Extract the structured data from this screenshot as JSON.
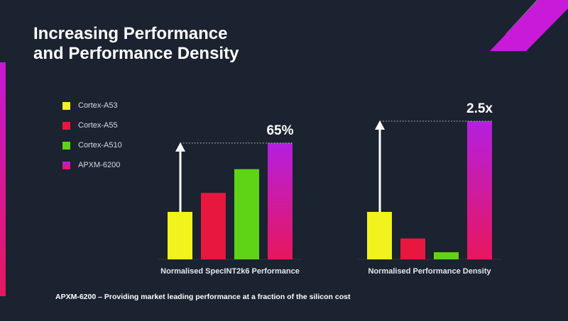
{
  "slide": {
    "title_line1": "Increasing Performance",
    "title_line2": "and Performance Density",
    "footer": "APXM-6200 – Providing market leading performance at a fraction of the silicon cost"
  },
  "colors": {
    "background": "#1b2230",
    "cortex_a53": "#f2f21c",
    "cortex_a55": "#e8173f",
    "cortex_a510": "#5fd416",
    "apxm_6200_top": "#b41fe0",
    "apxm_6200_bottom": "#e8175d",
    "arrow": "#ffffff"
  },
  "chart_data": {
    "type": "bar",
    "legend": [
      "Cortex-A53",
      "Cortex-A55",
      "Cortex-A510",
      "APXM-6200"
    ],
    "legend_placement": "left",
    "grid": false,
    "groups": [
      {
        "xlabel": "Normalised SpecINT2k6 Performance",
        "values": [
          1.0,
          1.4,
          1.9,
          2.45
        ],
        "annotation": "65%"
      },
      {
        "xlabel": "Normalised Performance Density",
        "values": [
          1.0,
          0.44,
          0.15,
          2.91
        ],
        "annotation": "2.5x"
      }
    ]
  }
}
